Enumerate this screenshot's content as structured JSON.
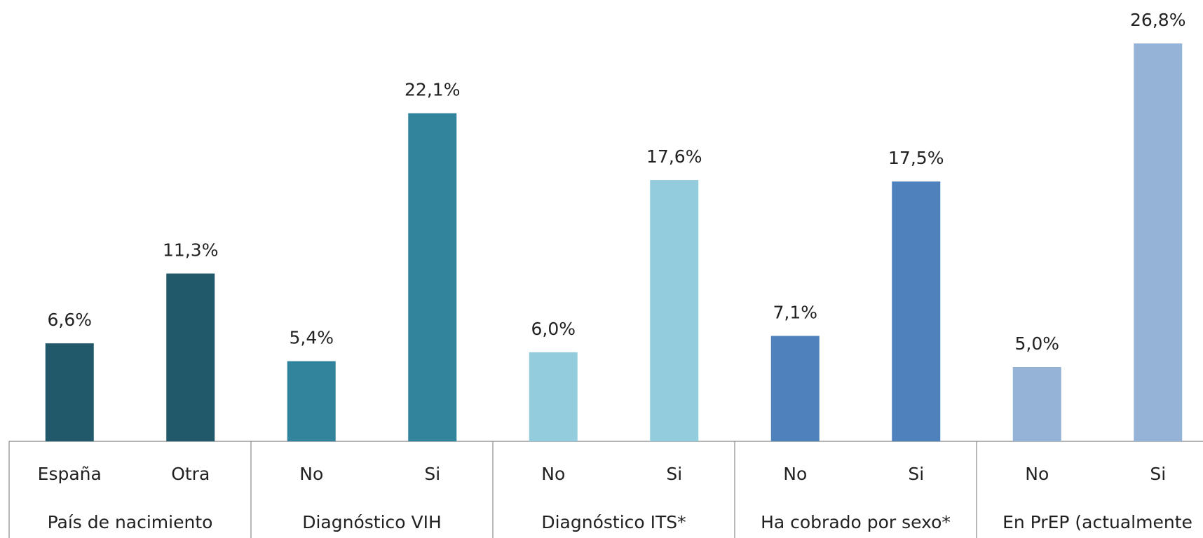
{
  "chart_data": {
    "type": "bar",
    "groups": [
      {
        "name": "País de nacimiento",
        "categories": [
          "España",
          "Otra"
        ],
        "values": [
          6.6,
          11.3
        ],
        "value_labels": [
          "6,6%",
          "11,3%"
        ],
        "color": "#22596a"
      },
      {
        "name": "Diagnóstico VIH",
        "categories": [
          "No",
          "Si"
        ],
        "values": [
          5.4,
          22.1
        ],
        "value_labels": [
          "5,4%",
          "22,1%"
        ],
        "color": "#31849b"
      },
      {
        "name": "Diagnóstico ITS*",
        "categories": [
          "No",
          "Si"
        ],
        "values": [
          6.0,
          17.6
        ],
        "value_labels": [
          "6,0%",
          "17,6%"
        ],
        "color": "#93cddd"
      },
      {
        "name": "Ha cobrado por sexo*",
        "categories": [
          "No",
          "Si"
        ],
        "values": [
          7.1,
          17.5
        ],
        "value_labels": [
          "7,1%",
          "17,5%"
        ],
        "color": "#4f81bd"
      },
      {
        "name": "En PrEP (actualmente",
        "categories": [
          "No",
          "Si"
        ],
        "values": [
          5.0,
          26.8
        ],
        "value_labels": [
          "5,0%",
          "26,8%"
        ],
        "color": "#95b3d7"
      }
    ]
  }
}
